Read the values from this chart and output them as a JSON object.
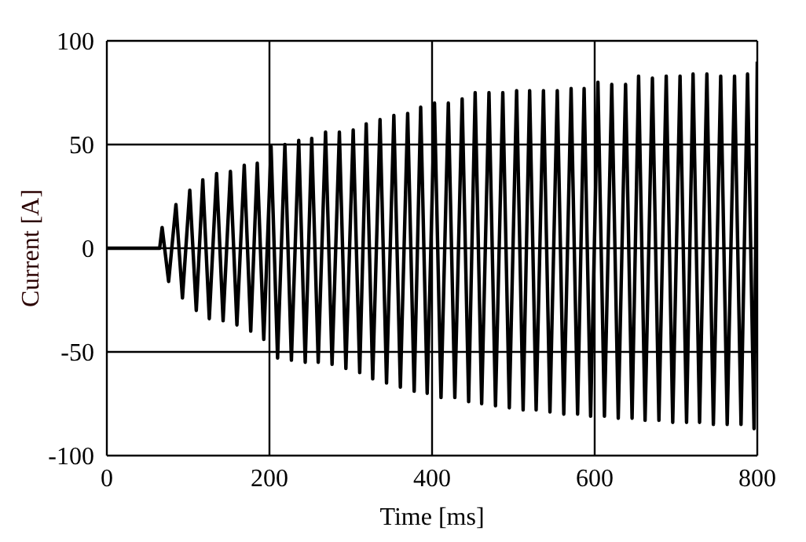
{
  "chart_data": {
    "type": "line",
    "xlabel": "Time [ms]",
    "ylabel": "Current [A]",
    "xlim": [
      0,
      800
    ],
    "xticks": [
      0,
      200,
      400,
      600,
      800
    ],
    "ylim": [
      -100,
      100
    ],
    "yticks": [
      -100,
      -50,
      0,
      50,
      100
    ],
    "grid": true,
    "marker": "none",
    "line_style": "solid",
    "x": [
      0,
      65,
      68,
      76,
      85,
      93,
      102,
      110,
      118,
      126,
      135,
      143,
      152,
      160,
      169,
      177,
      185,
      193,
      202,
      210,
      219,
      227,
      236,
      244,
      252,
      260,
      269,
      277,
      286,
      294,
      303,
      311,
      319,
      327,
      336,
      344,
      353,
      361,
      370,
      378,
      386,
      394,
      403,
      411,
      420,
      428,
      437,
      445,
      453,
      461,
      470,
      478,
      487,
      495,
      504,
      512,
      520,
      528,
      537,
      545,
      554,
      562,
      571,
      579,
      587,
      595,
      604,
      612,
      621,
      629,
      638,
      646,
      654,
      662,
      671,
      679,
      688,
      696,
      705,
      713,
      721,
      729,
      738,
      746,
      755,
      763,
      772,
      780,
      788,
      796,
      800
    ],
    "series": [
      {
        "color": "#000000",
        "values": [
          0,
          0,
          10,
          -16,
          21,
          -24,
          28,
          -30,
          33,
          -34,
          36,
          -35,
          37,
          -37,
          40,
          -40,
          41,
          -44,
          49,
          -53,
          50,
          -54,
          52,
          -55,
          53,
          -55,
          56,
          -56,
          56,
          -58,
          57,
          -60,
          60,
          -63,
          62,
          -65,
          64,
          -67,
          65,
          -69,
          68,
          -70,
          70,
          -72,
          70,
          -72,
          72,
          -74,
          75,
          -75,
          75,
          -76,
          75,
          -77,
          76,
          -78,
          76,
          -78,
          76,
          -79,
          76,
          -80,
          77,
          -80,
          77,
          -81,
          80,
          -81,
          79,
          -82,
          79,
          -82,
          83,
          -83,
          82,
          -83,
          83,
          -84,
          83,
          -84,
          84,
          -84,
          84,
          -85,
          83,
          -85,
          83,
          -85,
          84,
          -87,
          90
        ]
      }
    ]
  }
}
